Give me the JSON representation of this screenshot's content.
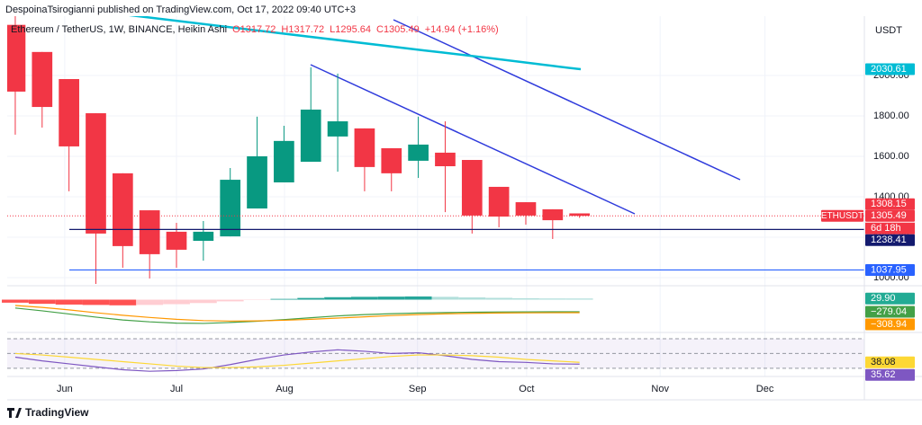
{
  "header": {
    "credit": "DespoinaTsirogianni published on TradingView.com, Oct 17, 2022 09:40 UTC+3",
    "footer": "TradingView"
  },
  "chart_data": {
    "type": "candlestick",
    "title": "Ethereum / TetherUS, 1W, BINANCE, Heikin Ashi",
    "ohlc_text": [
      "O1317.72",
      "H1317.72",
      "L1295.64",
      "C1305.49",
      "+14.94 (+1.16%)"
    ],
    "axis_unit": "USDT",
    "symbol": "ETHUSDT",
    "countdown": "6d 18h",
    "categories": [
      null,
      null,
      null,
      null,
      null,
      null,
      null,
      null,
      null,
      null,
      null,
      null,
      null,
      null,
      null,
      null,
      null,
      null,
      null,
      null,
      null,
      null
    ],
    "open": [
      2250,
      2116,
      1982,
      1813,
      1516,
      1333,
      1227,
      1182,
      1204,
      1342,
      1471,
      1573,
      1698,
      1738,
      1640,
      1578,
      1618,
      1582,
      1449,
      1373,
      1338,
      1317.72
    ],
    "high": [
      2400,
      2116,
      1982,
      1813,
      1516,
      1333,
      1271,
      1280,
      1542,
      1796,
      1751,
      2040,
      2009,
      1738,
      1640,
      1796,
      1773,
      1582,
      1449,
      1373,
      1338,
      1317.72
    ],
    "low": [
      1707,
      1742,
      1427,
      969,
      1049,
      996,
      1049,
      1084,
      1204,
      1342,
      1471,
      1573,
      1524,
      1427,
      1427,
      1493,
      1324,
      1218,
      1249,
      1262,
      1191,
      1295.64
    ],
    "close": [
      1920,
      1844,
      1649,
      1218,
      1156,
      1116,
      1138,
      1227,
      1484,
      1600,
      1676,
      1831,
      1773,
      1547,
      1516,
      1658,
      1551,
      1307,
      1302,
      1307,
      1284,
      1305.49
    ],
    "up_color": "#089981",
    "down_color": "#f23645",
    "xlim": [
      -0.3,
      31.6
    ],
    "xticks": [
      {
        "value": 1.84,
        "label": "Jun"
      },
      {
        "value": 6.0,
        "label": "Jul"
      },
      {
        "value": 10.02,
        "label": "Aug"
      },
      {
        "value": 14.97,
        "label": "Sep"
      },
      {
        "value": 19.03,
        "label": "Oct"
      },
      {
        "value": 24.0,
        "label": "Nov"
      },
      {
        "value": 27.9,
        "label": "Dec"
      }
    ],
    "ylim": [
      960,
      2293
    ],
    "yticks": [
      {
        "value": 1000,
        "label": "1000.00"
      },
      {
        "value": 1200,
        "label": "1200.00"
      },
      {
        "value": 1400,
        "label": "1400.00"
      },
      {
        "value": 1600,
        "label": "1600.00"
      },
      {
        "value": 1800,
        "label": "1800.00"
      },
      {
        "value": 2000,
        "label": "2000.00"
      }
    ],
    "grid": true,
    "price_lines": [
      {
        "value": 2030.61,
        "color": "#00bcd4",
        "style": "trend"
      },
      {
        "value": 1308.15,
        "color": "#f23645",
        "style": "none"
      },
      {
        "value": 1305.49,
        "color": "#f23645",
        "style": "dotted"
      },
      {
        "value": 1238.41,
        "color": "#131a6e",
        "style": "solid"
      },
      {
        "value": 1037.95,
        "color": "#2962ff",
        "style": "solid"
      }
    ],
    "panes": [
      {
        "type": "histogram",
        "ylim": [
          -250,
          250
        ],
        "colors": [
          "#26a69a",
          "#b2dfdb",
          "#ffcdd2",
          "#ff5252"
        ],
        "label_color": "#22ab94",
        "values": [
          -80,
          -110,
          -130,
          -140,
          -150,
          -140,
          -120,
          -90,
          -45,
          -10,
          20,
          45,
          65,
          75,
          80,
          85,
          75,
          60,
          48,
          38,
          31,
          29.9
        ],
        "value_labels": [
          null,
          null,
          null,
          null,
          null,
          null,
          null,
          null,
          null,
          null,
          null,
          null,
          null,
          null,
          null,
          null,
          null,
          null,
          null,
          null,
          null,
          "29.90"
        ]
      },
      {
        "type": "line",
        "ylim": [
          -880,
          34
        ],
        "series": [
          {
            "color": "#43a047",
            "values": [
              -160,
              -250,
              -350,
              -450,
              -540,
              -600,
              -640,
              -650,
              -620,
              -580,
              -530,
              -470,
              -410,
              -370,
              -340,
              -320,
              -305,
              -295,
              -288,
              -283,
              -280,
              -279.04
            ],
            "value_labels": [
              null,
              null,
              null,
              null,
              null,
              null,
              null,
              null,
              null,
              null,
              null,
              null,
              null,
              null,
              null,
              null,
              null,
              null,
              null,
              null,
              null,
              "−279.04"
            ]
          },
          {
            "color": "#ff9800",
            "values": [
              -80,
              -140,
              -220,
              -310,
              -390,
              -460,
              -520,
              -560,
              -575,
              -570,
              -550,
              -520,
              -480,
              -440,
              -400,
              -370,
              -345,
              -330,
              -320,
              -314,
              -310,
              -308.94
            ],
            "value_labels": [
              null,
              null,
              null,
              null,
              null,
              null,
              null,
              null,
              null,
              null,
              null,
              null,
              null,
              null,
              null,
              null,
              null,
              null,
              null,
              null,
              null,
              "−308.94"
            ]
          }
        ]
      },
      {
        "type": "line",
        "ylim": [
          25,
          76
        ],
        "bands": [
          30,
          50,
          70
        ],
        "series": [
          {
            "color": "#7e57c2",
            "values": [
              45,
              40,
              36,
              32,
              28,
              26,
              27,
              29,
              35,
              42,
              48,
              52,
              55,
              53,
              50,
              51,
              47,
              42,
              39,
              38,
              36,
              35.62
            ]
          },
          {
            "color": "#fdd835",
            "values": [
              50,
              48,
              45,
              42,
              39,
              36,
              33,
              31,
              31,
              32,
              34,
              37,
              40,
              43,
              46,
              48,
              48,
              47,
              45,
              42,
              40,
              38.08
            ]
          }
        ]
      }
    ]
  }
}
